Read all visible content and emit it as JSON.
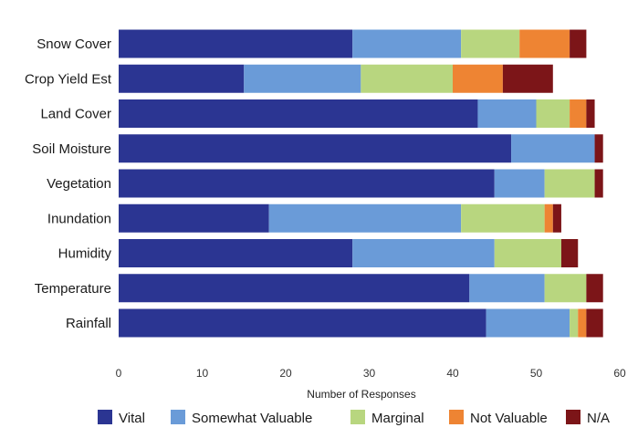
{
  "chart_data": {
    "type": "bar",
    "orientation": "horizontal",
    "stacked": true,
    "title": "",
    "xlabel": "Number of Responses",
    "ylabel": "",
    "xlim": [
      0,
      60
    ],
    "xticks": [
      0,
      10,
      20,
      30,
      40,
      50,
      60
    ],
    "grid": false,
    "legend_position": "bottom",
    "categories": [
      "Snow Cover",
      "Crop Yield Est",
      "Land Cover",
      "Soil Moisture",
      "Vegetation",
      "Inundation",
      "Humidity",
      "Temperature",
      "Rainfall"
    ],
    "series": [
      {
        "name": "Vital",
        "color": "#2b3592",
        "values": [
          28,
          15,
          43,
          47,
          45,
          18,
          28,
          42,
          44
        ]
      },
      {
        "name": "Somewhat Valuable",
        "color": "#6a9bd8",
        "values": [
          13,
          14,
          7,
          10,
          6,
          23,
          17,
          9,
          10
        ]
      },
      {
        "name": "Marginal",
        "color": "#b8d67f",
        "values": [
          7,
          11,
          4,
          0,
          6,
          10,
          8,
          5,
          1
        ]
      },
      {
        "name": "Not Valuable",
        "color": "#ee8433",
        "values": [
          6,
          6,
          2,
          0,
          0,
          1,
          0,
          0,
          1
        ]
      },
      {
        "name": "N/A",
        "color": "#7c1518",
        "values": [
          2,
          6,
          1,
          1,
          1,
          1,
          2,
          2,
          2
        ]
      }
    ]
  }
}
